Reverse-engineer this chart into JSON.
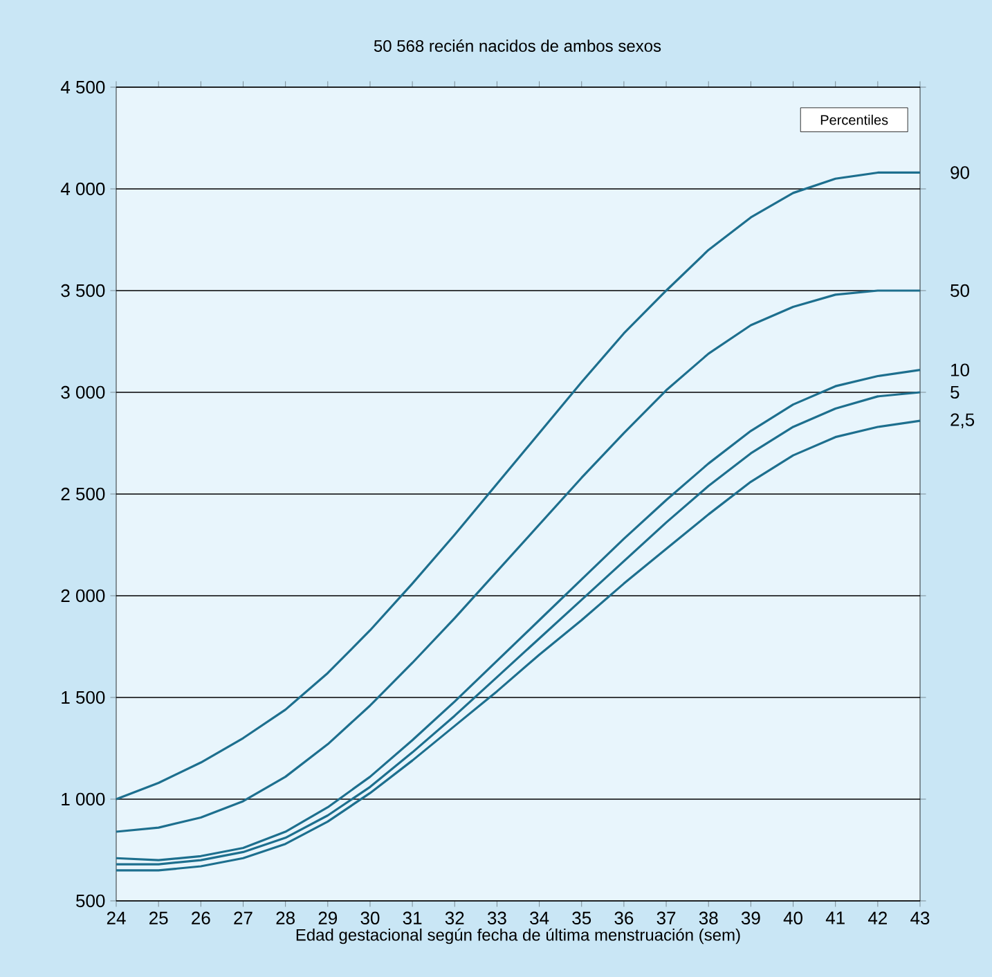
{
  "chart_data": {
    "type": "line",
    "title": "50 568 recién nacidos de ambos sexos",
    "xlabel": "Edad gestacional según fecha de última menstruación (sem)",
    "legend_title": "Percentiles",
    "x": [
      24,
      25,
      26,
      27,
      28,
      29,
      30,
      31,
      32,
      33,
      34,
      35,
      36,
      37,
      38,
      39,
      40,
      41,
      42,
      43
    ],
    "xlim": [
      24,
      43
    ],
    "xticks": [
      24,
      25,
      26,
      27,
      28,
      29,
      30,
      31,
      32,
      33,
      34,
      35,
      36,
      37,
      38,
      39,
      40,
      41,
      42,
      43
    ],
    "ylim": [
      500,
      4500
    ],
    "yticks": [
      500,
      {
        "value": 1000,
        "label": "1 000"
      },
      {
        "value": 1500,
        "label": "1 500"
      },
      {
        "value": 2000,
        "label": "2 000"
      },
      {
        "value": 2500,
        "label": "2 500"
      },
      {
        "value": 3000,
        "label": "3 000"
      },
      {
        "value": 3500,
        "label": "3 500"
      },
      {
        "value": 4000,
        "label": "4 000"
      },
      {
        "value": 4500,
        "label": "4 500"
      }
    ],
    "grid": "y",
    "marker": "none",
    "line_style": "solid",
    "series": [
      {
        "name": "90",
        "color": "#1d6f8e",
        "values": [
          1000,
          1080,
          1180,
          1300,
          1440,
          1620,
          1830,
          2060,
          2300,
          2550,
          2800,
          3050,
          3290,
          3500,
          3700,
          3860,
          3980,
          4050,
          4080,
          4080
        ]
      },
      {
        "name": "50",
        "color": "#1d6f8e",
        "values": [
          840,
          860,
          910,
          990,
          1110,
          1270,
          1460,
          1670,
          1890,
          2120,
          2350,
          2580,
          2800,
          3010,
          3190,
          3330,
          3420,
          3480,
          3500,
          3500
        ]
      },
      {
        "name": "10",
        "color": "#1d6f8e",
        "values": [
          710,
          700,
          720,
          760,
          840,
          960,
          1110,
          1290,
          1480,
          1680,
          1880,
          2080,
          2280,
          2470,
          2650,
          2810,
          2940,
          3030,
          3080,
          3110
        ]
      },
      {
        "name": "5",
        "color": "#1d6f8e",
        "values": [
          680,
          680,
          700,
          740,
          810,
          920,
          1060,
          1230,
          1410,
          1600,
          1790,
          1980,
          2170,
          2360,
          2540,
          2700,
          2830,
          2920,
          2980,
          3000
        ]
      },
      {
        "name": "2,5",
        "color": "#1d6f8e",
        "values": [
          650,
          650,
          670,
          710,
          780,
          890,
          1030,
          1190,
          1360,
          1530,
          1710,
          1880,
          2060,
          2230,
          2400,
          2560,
          2690,
          2780,
          2830,
          2860
        ]
      }
    ]
  }
}
